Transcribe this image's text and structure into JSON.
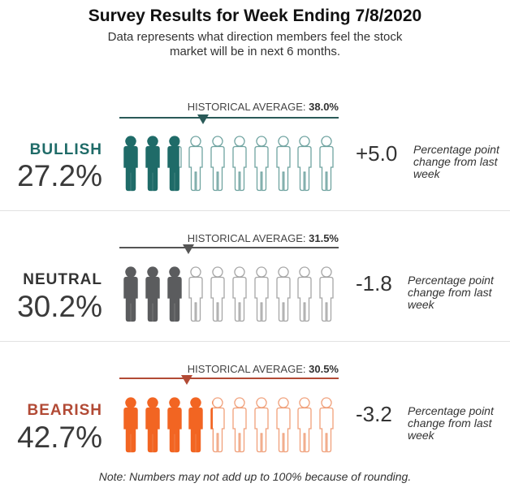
{
  "title": "Survey Results for Week Ending 7/8/2020",
  "subtitle": "Data represents what direction members feel the stock market will be in next 6 months.",
  "note": "Note: Numbers may not add up to 100% because of rounding.",
  "icon": "person-icon",
  "chart_data": {
    "type": "pictograph",
    "icons_per_row": 10,
    "unit_per_icon": 10,
    "categories": [
      {
        "key": "bullish",
        "label": "BULLISH",
        "value": 27.2,
        "value_label": "27.2%",
        "historical_label": "HISTORICAL AVERAGE:",
        "historical_value": 38.0,
        "historical_value_label": "38.0%",
        "change": 5.0,
        "change_label": "+5.0",
        "change_caption": "Percentage point change from last week",
        "color": "#1f6b68",
        "line_color": "#2a5a58",
        "outline_color": "#6fa3a0"
      },
      {
        "key": "neutral",
        "label": "NEUTRAL",
        "value": 30.2,
        "value_label": "30.2%",
        "historical_label": "HISTORICAL AVERAGE:",
        "historical_value": 31.5,
        "historical_value_label": "31.5%",
        "change": -1.8,
        "change_label": "-1.8",
        "change_caption": "Percentage point change from last week",
        "color": "#5b5c5e",
        "line_color": "#555555",
        "outline_color": "#a6a6a6"
      },
      {
        "key": "bearish",
        "label": "BEARISH",
        "value": 42.7,
        "value_label": "42.7%",
        "historical_label": "HISTORICAL AVERAGE:",
        "historical_value": 30.5,
        "historical_value_label": "30.5%",
        "change": -3.2,
        "change_label": "-3.2",
        "change_caption": "Percentage point change from last week",
        "color": "#f26522",
        "line_color": "#b24a35",
        "outline_color": "#f0a07a"
      }
    ]
  }
}
